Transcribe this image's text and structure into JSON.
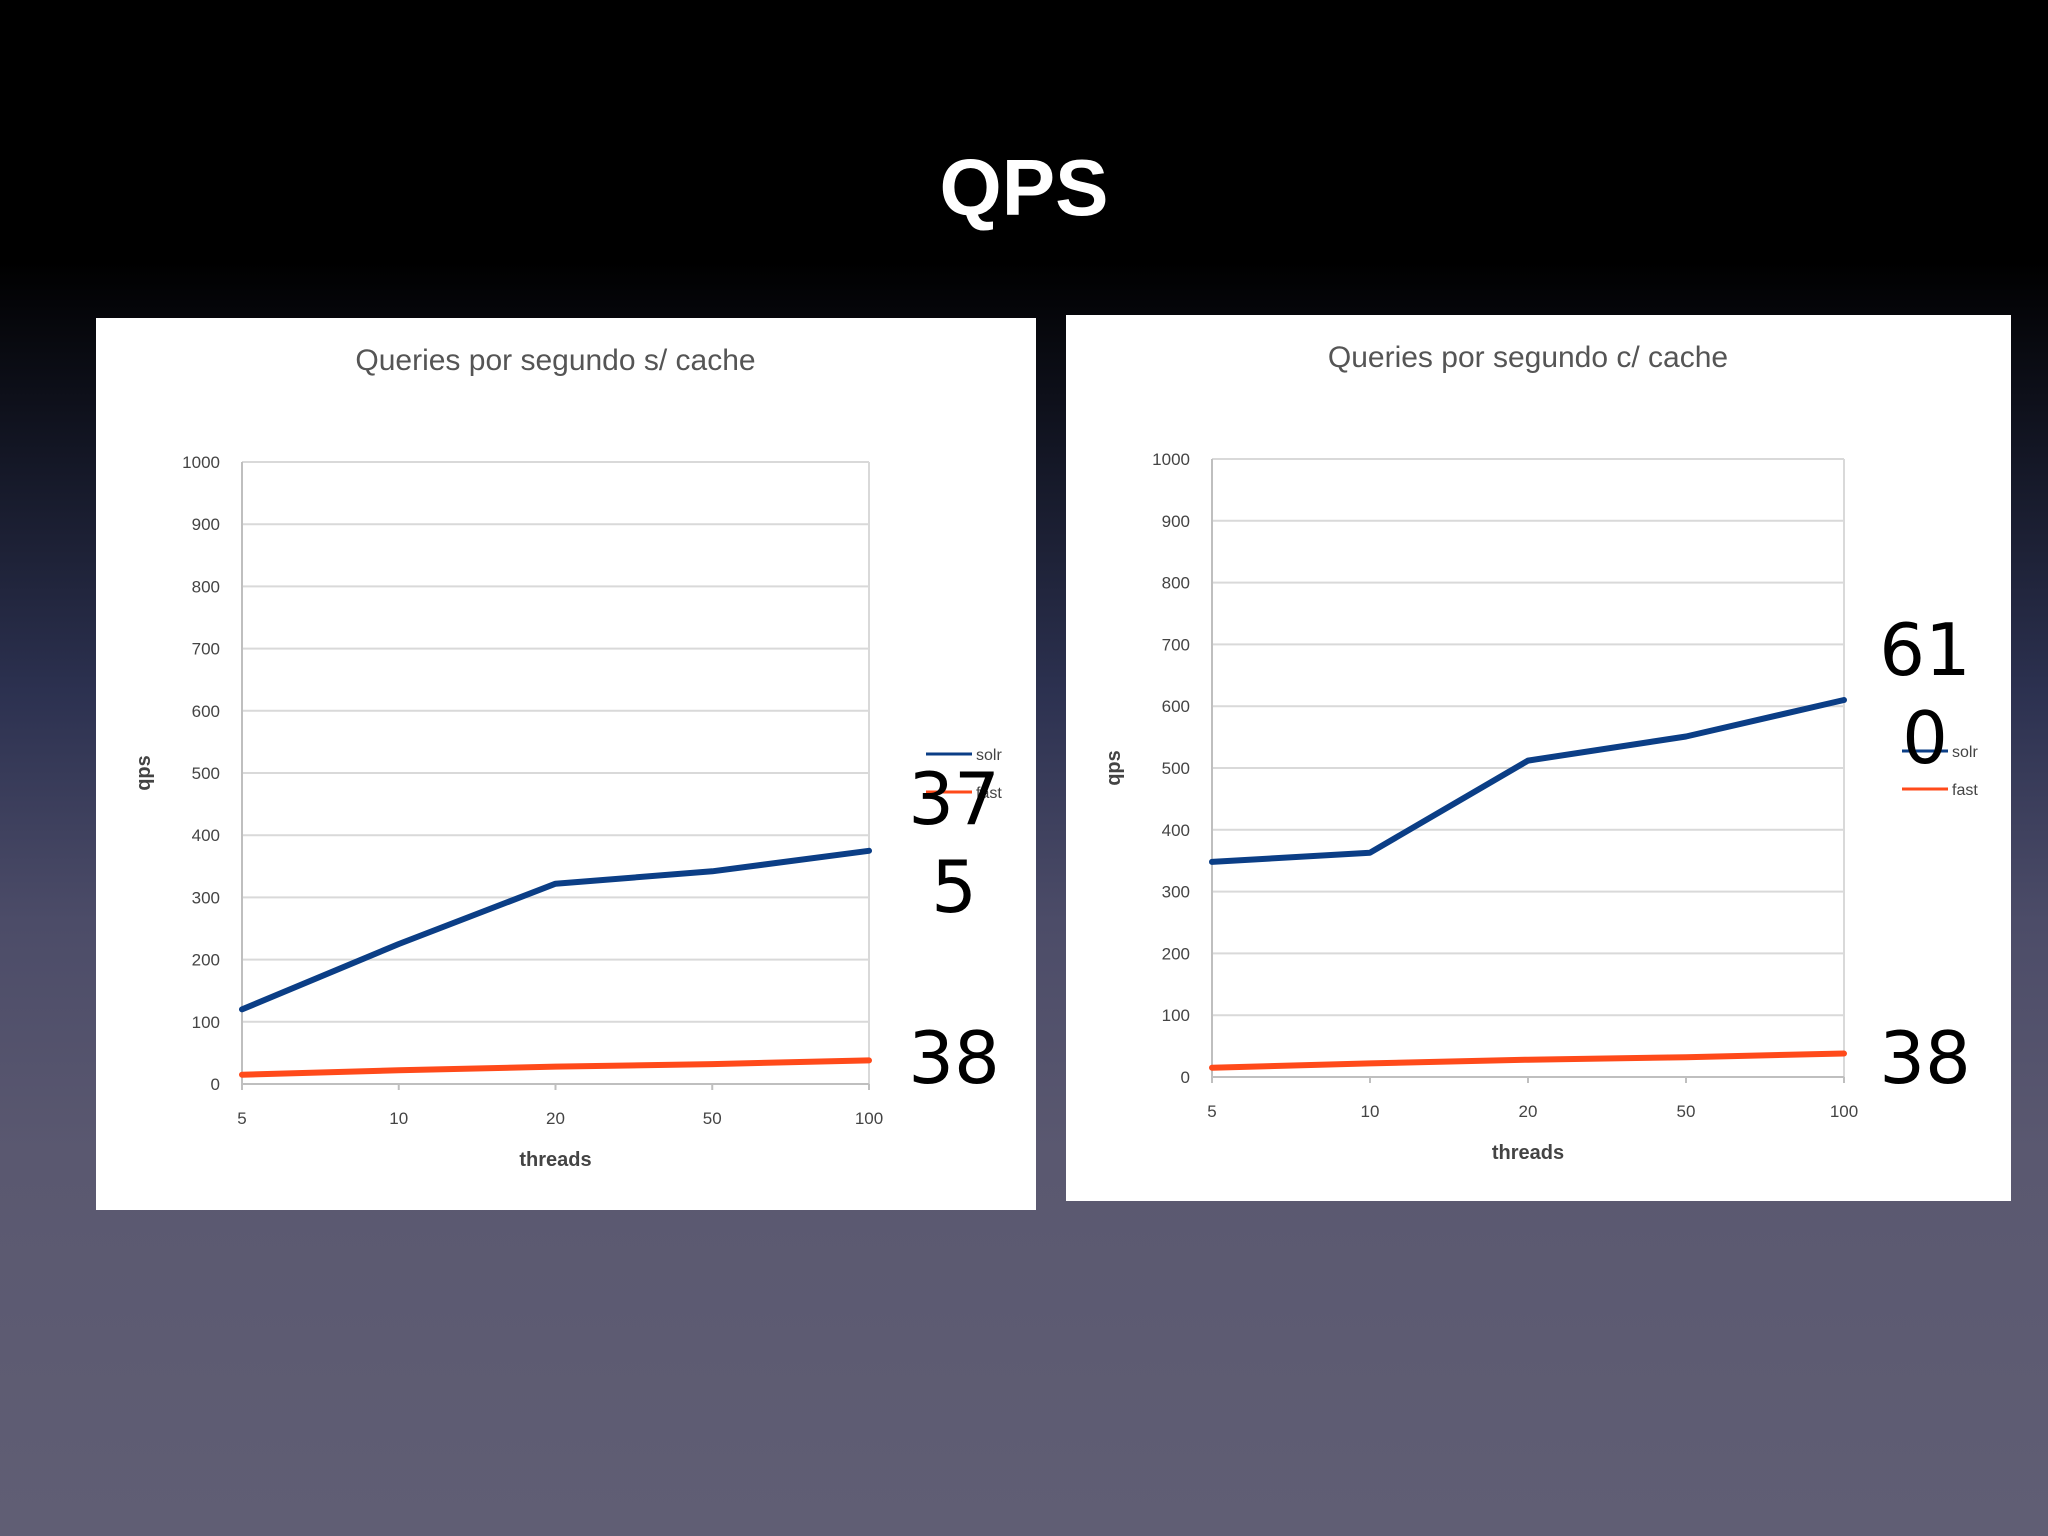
{
  "slide": {
    "title": "QPS"
  },
  "colors": {
    "solr": "#0b3e86",
    "fast": "#ff4a1a",
    "grid": "#d9d9d9",
    "axis_text": "#444444"
  },
  "chart_data": [
    {
      "type": "line",
      "title": "Queries por segundo s/ cache",
      "xlabel": "threads",
      "ylabel": "qps",
      "categories": [
        "5",
        "10",
        "20",
        "50",
        "100"
      ],
      "series": [
        {
          "name": "solr",
          "values": [
            120,
            225,
            322,
            342,
            375
          ]
        },
        {
          "name": "fast",
          "values": [
            15,
            22,
            28,
            32,
            38
          ]
        }
      ],
      "ylim": [
        0,
        1000
      ],
      "yticks": [
        "0",
        "100",
        "200",
        "300",
        "400",
        "500",
        "600",
        "700",
        "800",
        "900",
        "1000"
      ],
      "grid": true,
      "legend": "right",
      "annotations": [
        "37\n5",
        "38"
      ]
    },
    {
      "type": "line",
      "title": "Queries por segundo c/ cache",
      "xlabel": "threads",
      "ylabel": "qps",
      "categories": [
        "5",
        "10",
        "20",
        "50",
        "100"
      ],
      "series": [
        {
          "name": "solr",
          "values": [
            348,
            363,
            512,
            551,
            610
          ]
        },
        {
          "name": "fast",
          "values": [
            15,
            22,
            28,
            32,
            38
          ]
        }
      ],
      "ylim": [
        0,
        1000
      ],
      "yticks": [
        "0",
        "100",
        "200",
        "300",
        "400",
        "500",
        "600",
        "700",
        "800",
        "900",
        "1000"
      ],
      "grid": true,
      "legend": "right",
      "annotations": [
        "61\n0",
        "38"
      ]
    }
  ]
}
